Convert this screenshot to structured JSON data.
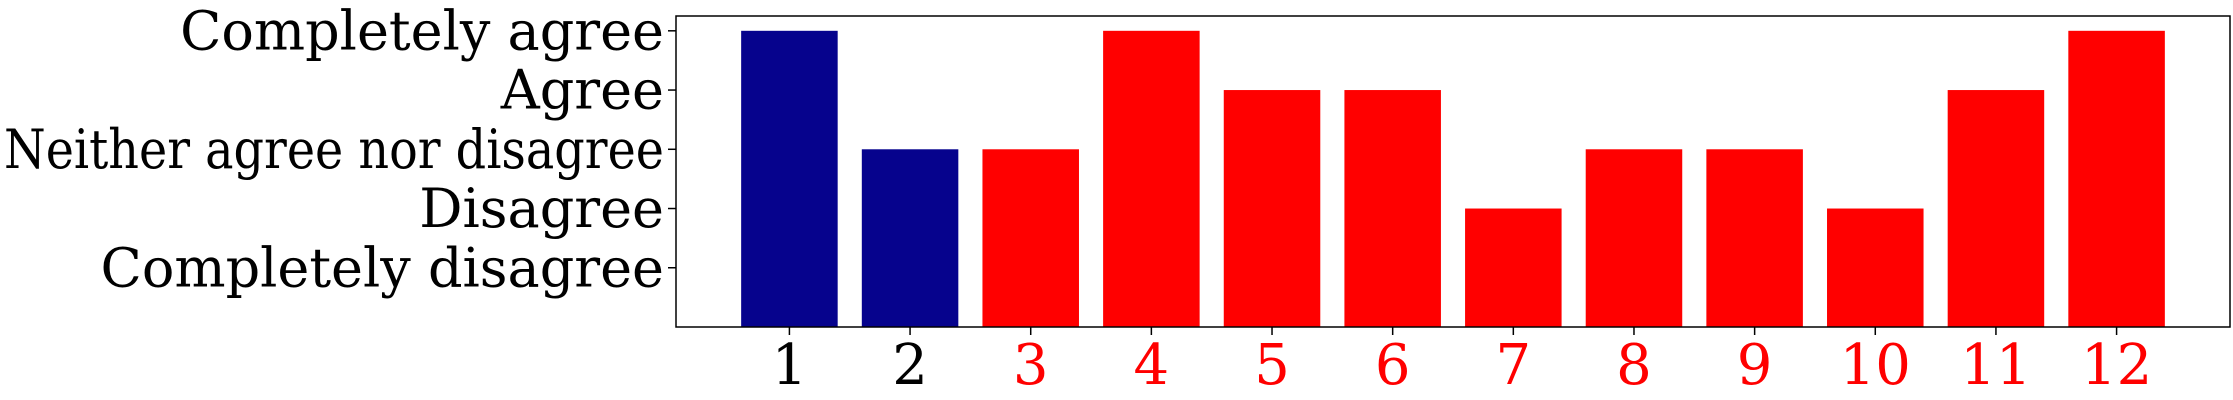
{
  "chart_data": {
    "type": "bar",
    "categories": [
      "1",
      "2",
      "3",
      "4",
      "5",
      "6",
      "7",
      "8",
      "9",
      "10",
      "11",
      "12"
    ],
    "values": [
      5,
      3,
      3,
      5,
      4,
      4,
      2,
      3,
      3,
      2,
      4,
      5
    ],
    "bar_colors": [
      "#06038D",
      "#06038D",
      "#FF0000",
      "#FF0000",
      "#FF0000",
      "#FF0000",
      "#FF0000",
      "#FF0000",
      "#FF0000",
      "#FF0000",
      "#FF0000",
      "#FF0000"
    ],
    "tick_label_colors": [
      "#000000",
      "#000000",
      "#FF0000",
      "#FF0000",
      "#FF0000",
      "#FF0000",
      "#FF0000",
      "#FF0000",
      "#FF0000",
      "#FF0000",
      "#FF0000",
      "#FF0000"
    ],
    "y_ticks": [
      {
        "value": 1,
        "label": "Completely disagree"
      },
      {
        "value": 2,
        "label": "Disagree"
      },
      {
        "value": 3,
        "label": "Neither agree nor disagree"
      },
      {
        "value": 4,
        "label": "Agree"
      },
      {
        "value": 5,
        "label": "Completely agree"
      }
    ],
    "ylim": [
      0,
      5.25
    ],
    "xlabel": "",
    "ylabel": "",
    "title": "",
    "grid": false,
    "legend": "none"
  }
}
